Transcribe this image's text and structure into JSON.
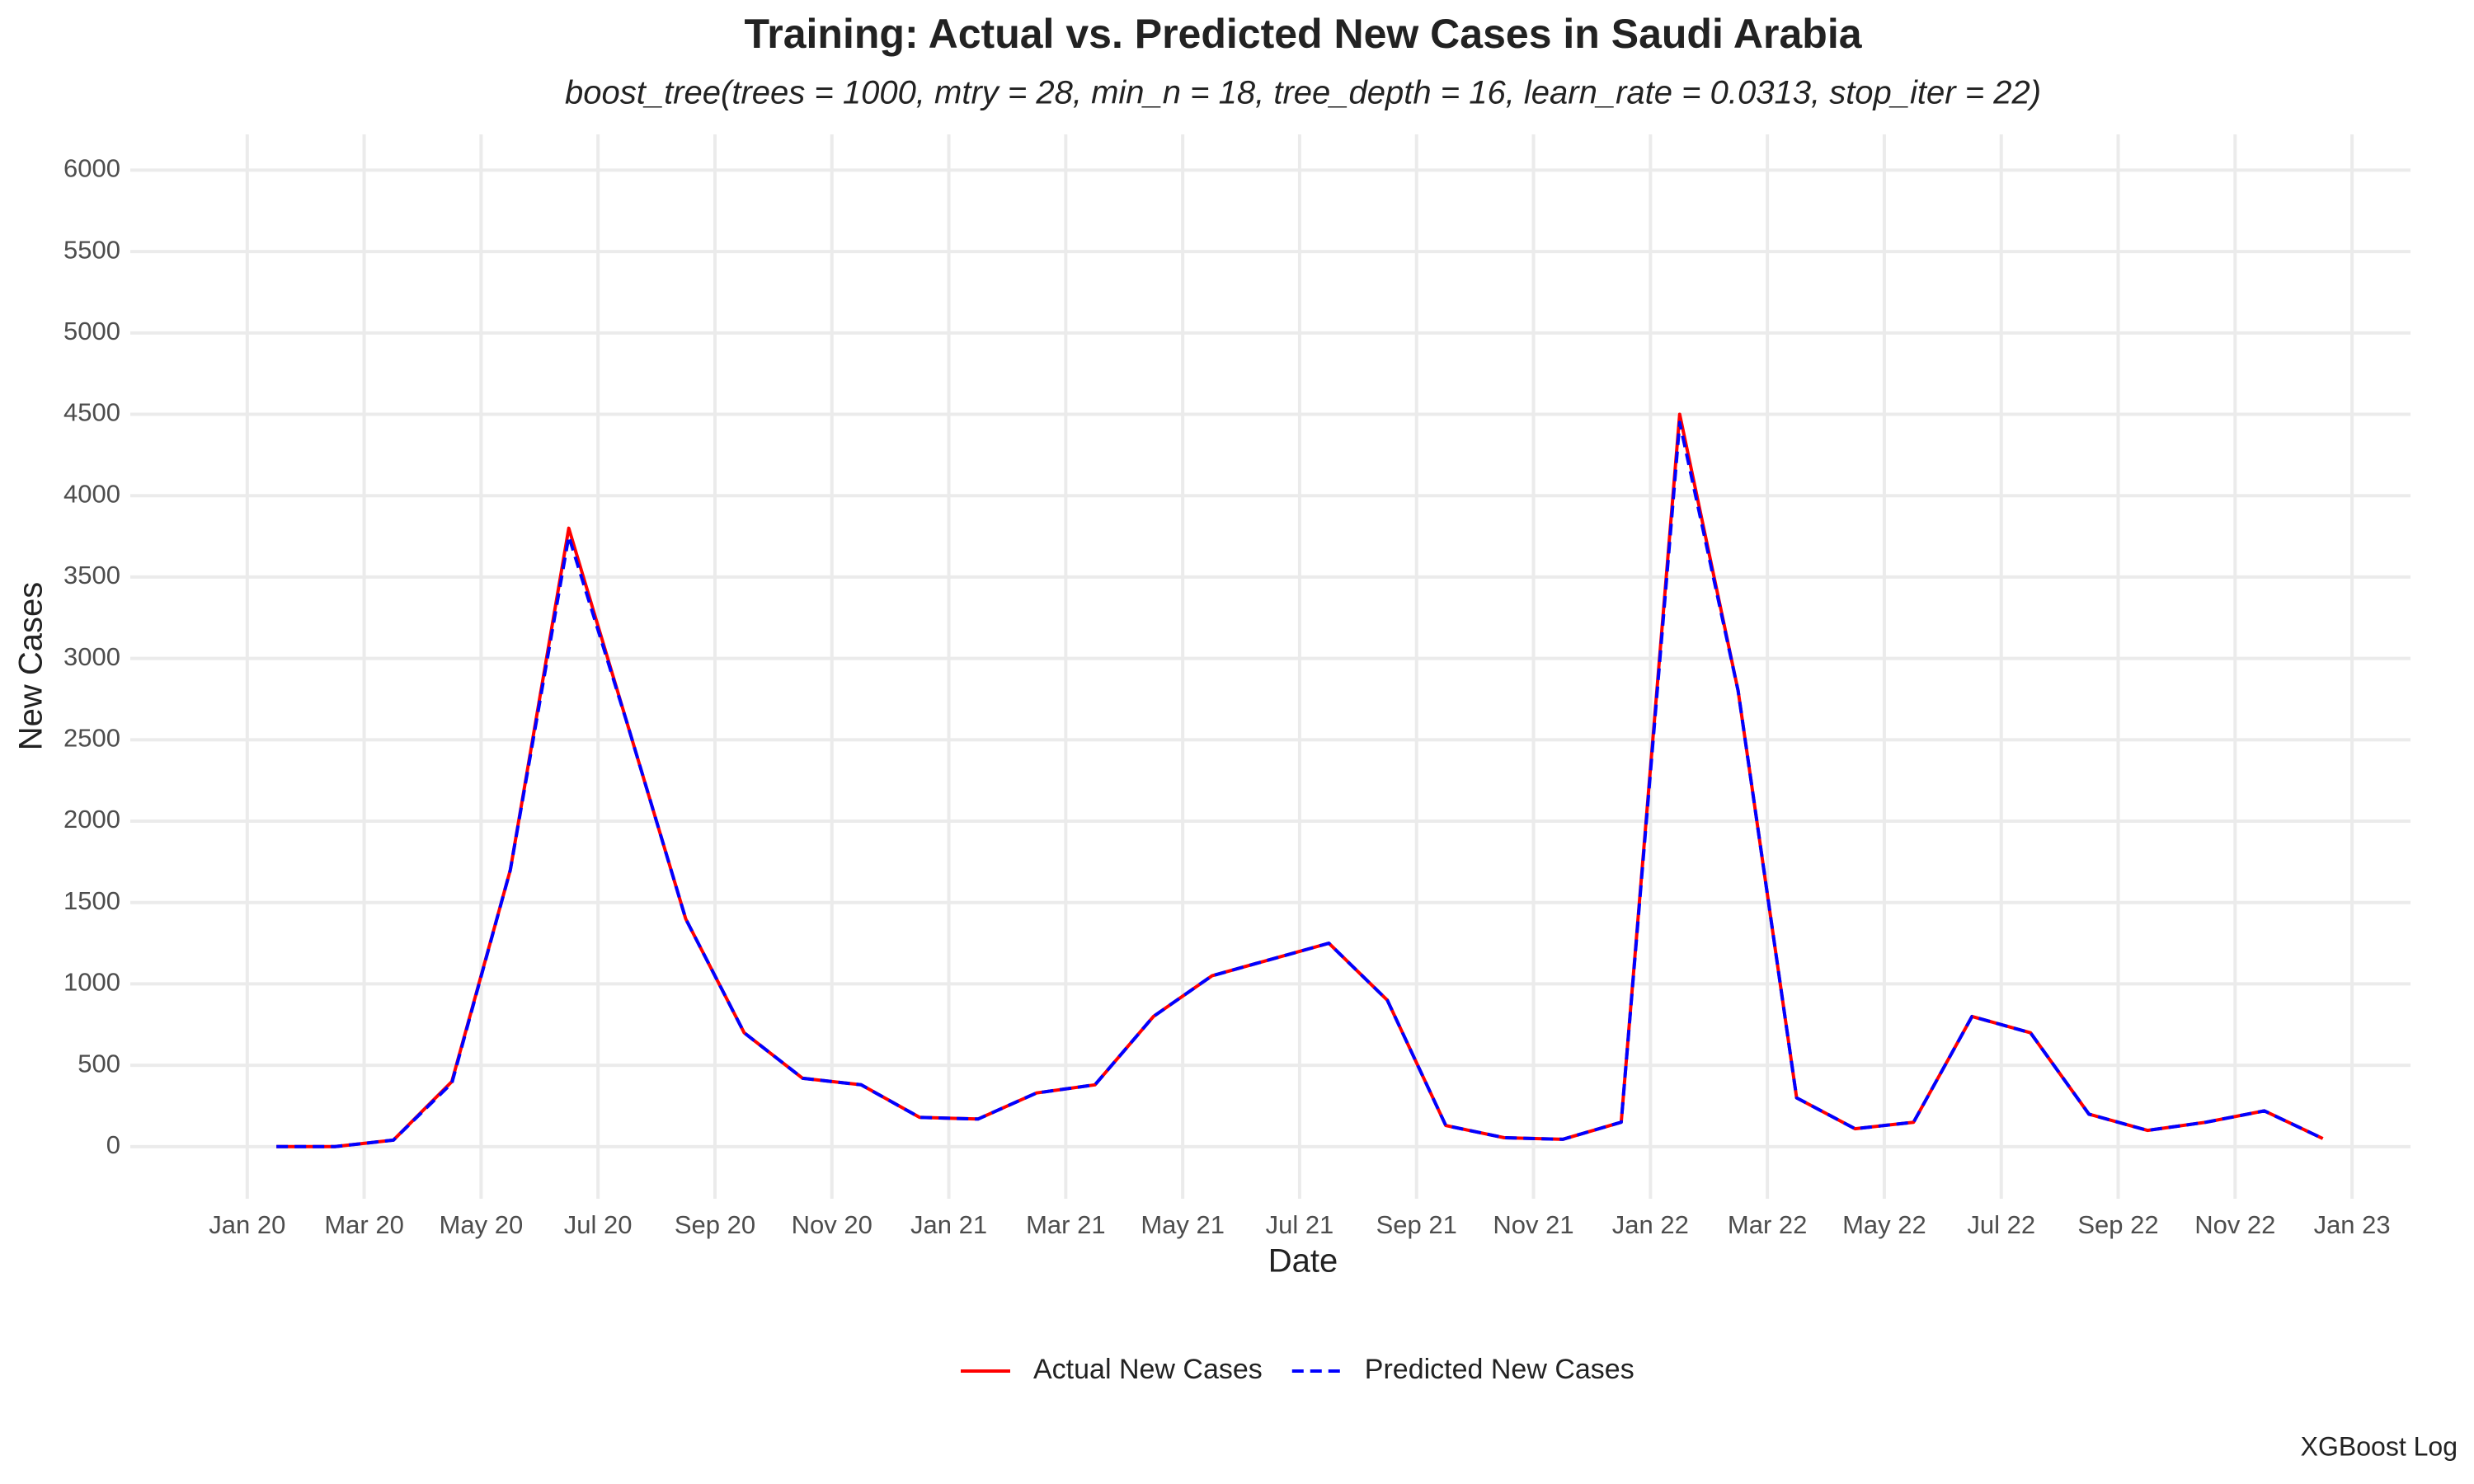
{
  "chart_data": {
    "type": "line",
    "title": "Training: Actual vs. Predicted New Cases in Saudi Arabia",
    "subtitle": "boost_tree(trees = 1000, mtry = 28, min_n = 18, tree_depth = 16, learn_rate = 0.0313, stop_iter = 22)",
    "x_label": "Date",
    "y_label": "New Cases",
    "caption": "XGBoost Log",
    "x": [
      "2020-01",
      "2020-02",
      "2020-03",
      "2020-04",
      "2020-05",
      "2020-06",
      "2020-07",
      "2020-08",
      "2020-09",
      "2020-10",
      "2020-11",
      "2020-12",
      "2021-01",
      "2021-02",
      "2021-03",
      "2021-04",
      "2021-05",
      "2021-06",
      "2021-07",
      "2021-08",
      "2021-09",
      "2021-10",
      "2021-11",
      "2021-12",
      "2022-01",
      "2022-02",
      "2022-03",
      "2022-04",
      "2022-05",
      "2022-06",
      "2022-07",
      "2022-08",
      "2022-09",
      "2022-10",
      "2022-11",
      "2022-12"
    ],
    "series": [
      {
        "name": "Actual New Cases",
        "color": "#ff0000",
        "dashed": false,
        "values": [
          0,
          0,
          40,
          400,
          1700,
          3800,
          2600,
          1400,
          700,
          420,
          380,
          180,
          170,
          330,
          380,
          800,
          1050,
          1150,
          1250,
          900,
          130,
          55,
          45,
          150,
          4500,
          2800,
          300,
          110,
          150,
          800,
          700,
          200,
          100,
          150,
          220,
          50
        ]
      },
      {
        "name": "Predicted New Cases",
        "color": "#0000ff",
        "dashed": true,
        "values": [
          0,
          0,
          40,
          390,
          1700,
          3750,
          2600,
          1400,
          700,
          420,
          380,
          180,
          170,
          330,
          380,
          800,
          1050,
          1150,
          1250,
          900,
          130,
          55,
          45,
          150,
          4450,
          2800,
          300,
          110,
          150,
          800,
          700,
          200,
          100,
          150,
          220,
          50
        ]
      }
    ],
    "xlim": [
      "2019-11",
      "2023-02"
    ],
    "xticks": [
      {
        "value": "2020-01",
        "label": "Jan 20"
      },
      {
        "value": "2020-03",
        "label": "Mar 20"
      },
      {
        "value": "2020-05",
        "label": "May 20"
      },
      {
        "value": "2020-07",
        "label": "Jul 20"
      },
      {
        "value": "2020-09",
        "label": "Sep 20"
      },
      {
        "value": "2020-11",
        "label": "Nov 20"
      },
      {
        "value": "2021-01",
        "label": "Jan 21"
      },
      {
        "value": "2021-03",
        "label": "Mar 21"
      },
      {
        "value": "2021-05",
        "label": "May 21"
      },
      {
        "value": "2021-07",
        "label": "Jul 21"
      },
      {
        "value": "2021-09",
        "label": "Sep 21"
      },
      {
        "value": "2021-11",
        "label": "Nov 21"
      },
      {
        "value": "2022-01",
        "label": "Jan 22"
      },
      {
        "value": "2022-03",
        "label": "Mar 22"
      },
      {
        "value": "2022-05",
        "label": "May 22"
      },
      {
        "value": "2022-07",
        "label": "Jul 22"
      },
      {
        "value": "2022-09",
        "label": "Sep 22"
      },
      {
        "value": "2022-11",
        "label": "Nov 22"
      },
      {
        "value": "2023-01",
        "label": "Jan 23"
      }
    ],
    "ylim": [
      -320,
      6220
    ],
    "yticks": [
      0,
      500,
      1000,
      1500,
      2000,
      2500,
      3000,
      3500,
      4000,
      4500,
      5000,
      5500,
      6000
    ],
    "grid": true,
    "legend": "bottom"
  }
}
